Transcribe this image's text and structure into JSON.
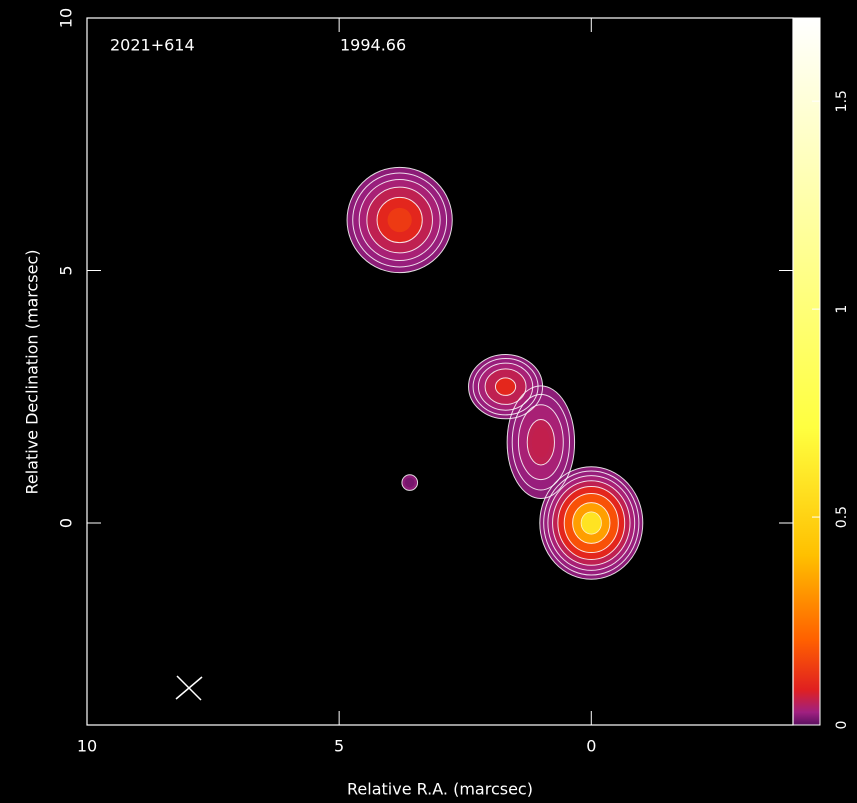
{
  "chart_data": {
    "type": "contour-map",
    "source_name": "2021+614",
    "epoch": "1994.66",
    "xlabel": "Relative R.A. (marcsec)",
    "ylabel": "Relative Declination (marcsec)",
    "xlim": [
      10,
      -4
    ],
    "ylim": [
      -4,
      10
    ],
    "xticks": [
      10,
      5,
      0
    ],
    "yticks": [
      0,
      5,
      10
    ],
    "clim": [
      0,
      1.7
    ],
    "cticks": [
      0,
      0.5,
      1,
      1.5
    ],
    "contour_levels": [
      0.005,
      0.01,
      0.02,
      0.04,
      0.08,
      0.16,
      0.32,
      0.5
    ],
    "sources": [
      {
        "x": 3.8,
        "y": 6.0,
        "peak": 0.15,
        "sx": 0.4,
        "sy": 0.4
      },
      {
        "x": 0,
        "y": 0,
        "peak": 0.6,
        "sx": 0.33,
        "sy": 0.36
      },
      {
        "x": 1.7,
        "y": 2.7,
        "peak": 0.1,
        "sx": 0.3,
        "sy": 0.26
      },
      {
        "x": 1.0,
        "y": 1.6,
        "peak": 0.06,
        "sx": 0.3,
        "sy": 0.5
      },
      {
        "x": 3.6,
        "y": 0.8,
        "peak": 0.008,
        "sx": 0.16,
        "sy": 0.16
      }
    ]
  }
}
